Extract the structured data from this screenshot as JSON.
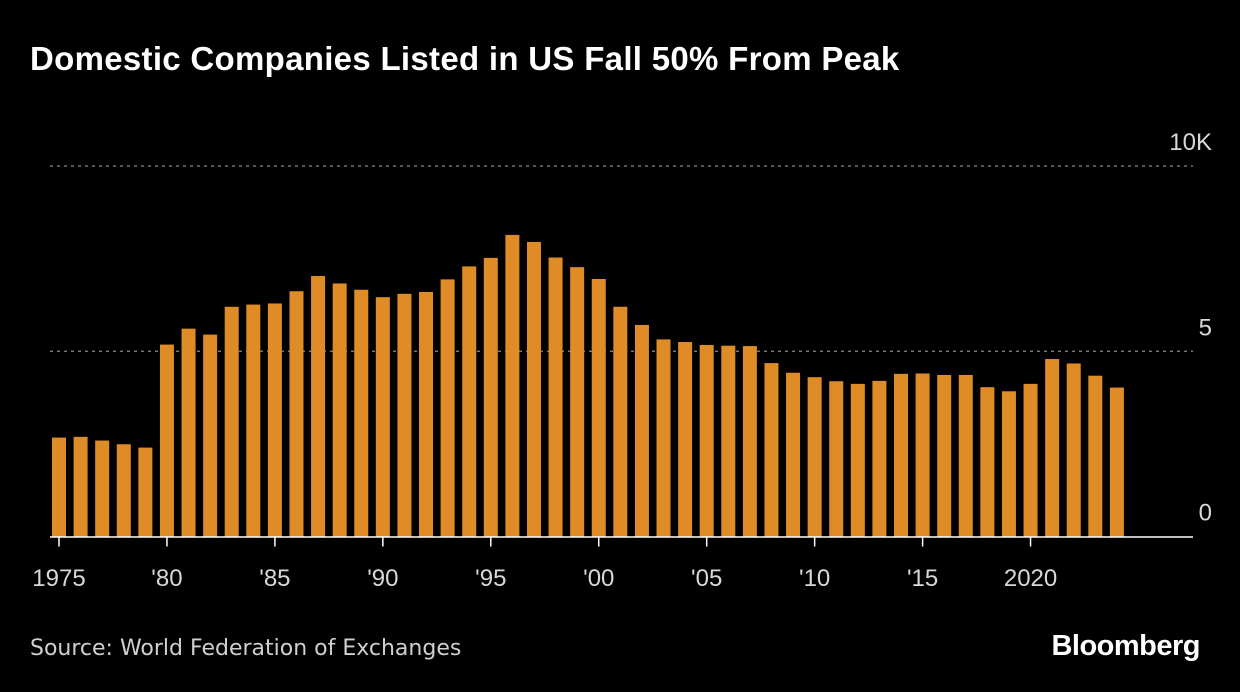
{
  "colors": {
    "background": "#000000",
    "bar": "#e08c26",
    "grid": "#8a8a8a",
    "axis": "#ffffff"
  },
  "chart_data": {
    "type": "bar",
    "title": "Domestic Companies Listed in US Fall 50% From Peak",
    "xlabel": "",
    "ylabel": "",
    "ylim": [
      0,
      10
    ],
    "grid": true,
    "legend": "none",
    "yticks": [
      {
        "value": 0,
        "label": "0"
      },
      {
        "value": 5,
        "label": "5"
      },
      {
        "value": 10,
        "label": "10K"
      }
    ],
    "xticks": [
      {
        "year": 1975,
        "label": "1975"
      },
      {
        "year": 1980,
        "label": "'80"
      },
      {
        "year": 1985,
        "label": "'85"
      },
      {
        "year": 1990,
        "label": "'90"
      },
      {
        "year": 1995,
        "label": "'95"
      },
      {
        "year": 2000,
        "label": "'00"
      },
      {
        "year": 2005,
        "label": "'05"
      },
      {
        "year": 2010,
        "label": "'10"
      },
      {
        "year": 2015,
        "label": "'15"
      },
      {
        "year": 2020,
        "label": "2020"
      }
    ],
    "categories": [
      1975,
      1976,
      1977,
      1978,
      1979,
      1980,
      1981,
      1982,
      1983,
      1984,
      1985,
      1986,
      1987,
      1988,
      1989,
      1990,
      1991,
      1992,
      1993,
      1994,
      1995,
      1996,
      1997,
      1998,
      1999,
      2000,
      2001,
      2002,
      2003,
      2004,
      2005,
      2006,
      2007,
      2008,
      2009,
      2010,
      2011,
      2012,
      2013,
      2014,
      2015,
      2016,
      2017,
      2018,
      2019,
      2020,
      2021,
      2022,
      2023,
      2024
    ],
    "values": [
      2.67,
      2.69,
      2.59,
      2.49,
      2.4,
      5.18,
      5.61,
      5.45,
      6.2,
      6.26,
      6.29,
      6.62,
      7.03,
      6.83,
      6.66,
      6.46,
      6.55,
      6.6,
      6.94,
      7.29,
      7.52,
      8.14,
      7.95,
      7.53,
      7.27,
      6.95,
      6.2,
      5.71,
      5.32,
      5.25,
      5.17,
      5.15,
      5.14,
      4.68,
      4.42,
      4.3,
      4.19,
      4.12,
      4.2,
      4.39,
      4.4,
      4.36,
      4.36,
      4.03,
      3.92,
      4.12,
      4.79,
      4.67,
      4.34,
      4.02
    ]
  },
  "footer": {
    "source": "Source: World Federation of Exchanges",
    "logo": "Bloomberg"
  }
}
